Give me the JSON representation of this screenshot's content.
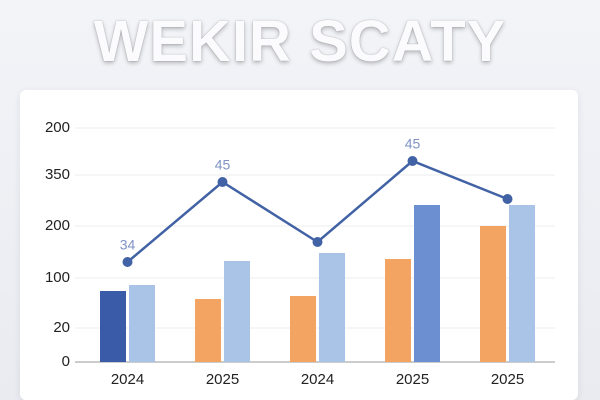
{
  "chart_data": {
    "type": "bar",
    "title": "WEKIR SCATY",
    "categories": [
      "2024",
      "2025",
      "2024",
      "2025",
      "2025"
    ],
    "ylim": [
      0,
      240
    ],
    "yticks": [
      0,
      {
        "value": 34,
        "label": "20"
      },
      {
        "value": 84,
        "label": "100"
      },
      {
        "value": 136,
        "label": "200"
      },
      {
        "value": 187,
        "label": "350"
      },
      {
        "value": 234,
        "label": "200"
      }
    ],
    "grid": true,
    "series": [
      {
        "type": "bar",
        "colors": [
          "#3a5ba8",
          "#f4a462",
          "#f4a462",
          "#f4a462",
          "#f4a462"
        ],
        "values": [
          71,
          63,
          66,
          103,
          136
        ]
      },
      {
        "type": "bar",
        "colors": [
          "#aac4e7",
          "#aac4e7",
          "#aac4e7",
          "#6b8fd0",
          "#aac4e7"
        ],
        "values": [
          77,
          101,
          109,
          157,
          157
        ]
      },
      {
        "type": "line",
        "color": "#4262a6",
        "values": [
          100,
          180,
          120,
          201,
          163
        ]
      }
    ],
    "annotations": [
      "34",
      "45",
      "45"
    ]
  }
}
